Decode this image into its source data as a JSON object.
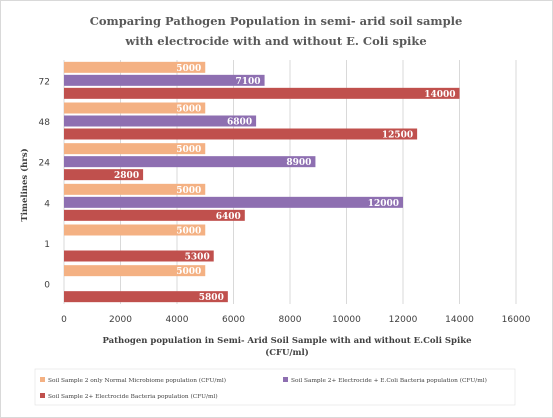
{
  "chart_data": {
    "type": "bar",
    "orientation": "horizontal",
    "title_lines": [
      "Comparing Pathogen Population in semi- arid soil sample",
      "with electrocide with and without E. Coli spike"
    ],
    "xlabel_lines": [
      "Pathogen population in Semi- Arid Soil Sample with and without E.Coli Spike",
      "(CFU/ml)"
    ],
    "ylabel": "Timelines (hrs)",
    "categories": [
      "72",
      "48",
      "24",
      "4",
      "1",
      "0"
    ],
    "xlim": [
      0,
      16000
    ],
    "xticks": [
      0,
      2000,
      4000,
      6000,
      8000,
      10000,
      12000,
      14000,
      16000
    ],
    "grid": true,
    "legend_position": "bottom",
    "series": [
      {
        "name": "Soil Sample 2 only Normal Microbiome population (CFU/ml)",
        "color": "#F4B183",
        "values": [
          5000,
          5000,
          5000,
          5000,
          5000,
          5000
        ]
      },
      {
        "name": "Soil Sample 2+ Electrocide + E.Coli Bacteria population (CFU/ml)",
        "color": "#8E6FB1",
        "values": [
          7100,
          6800,
          8900,
          12000,
          null,
          null
        ]
      },
      {
        "name": "Soil Sample 2+ Electrocide Bacteria population (CFU/ml)",
        "color": "#C0504D",
        "values": [
          14000,
          12500,
          2800,
          6400,
          5300,
          5800
        ]
      }
    ]
  }
}
